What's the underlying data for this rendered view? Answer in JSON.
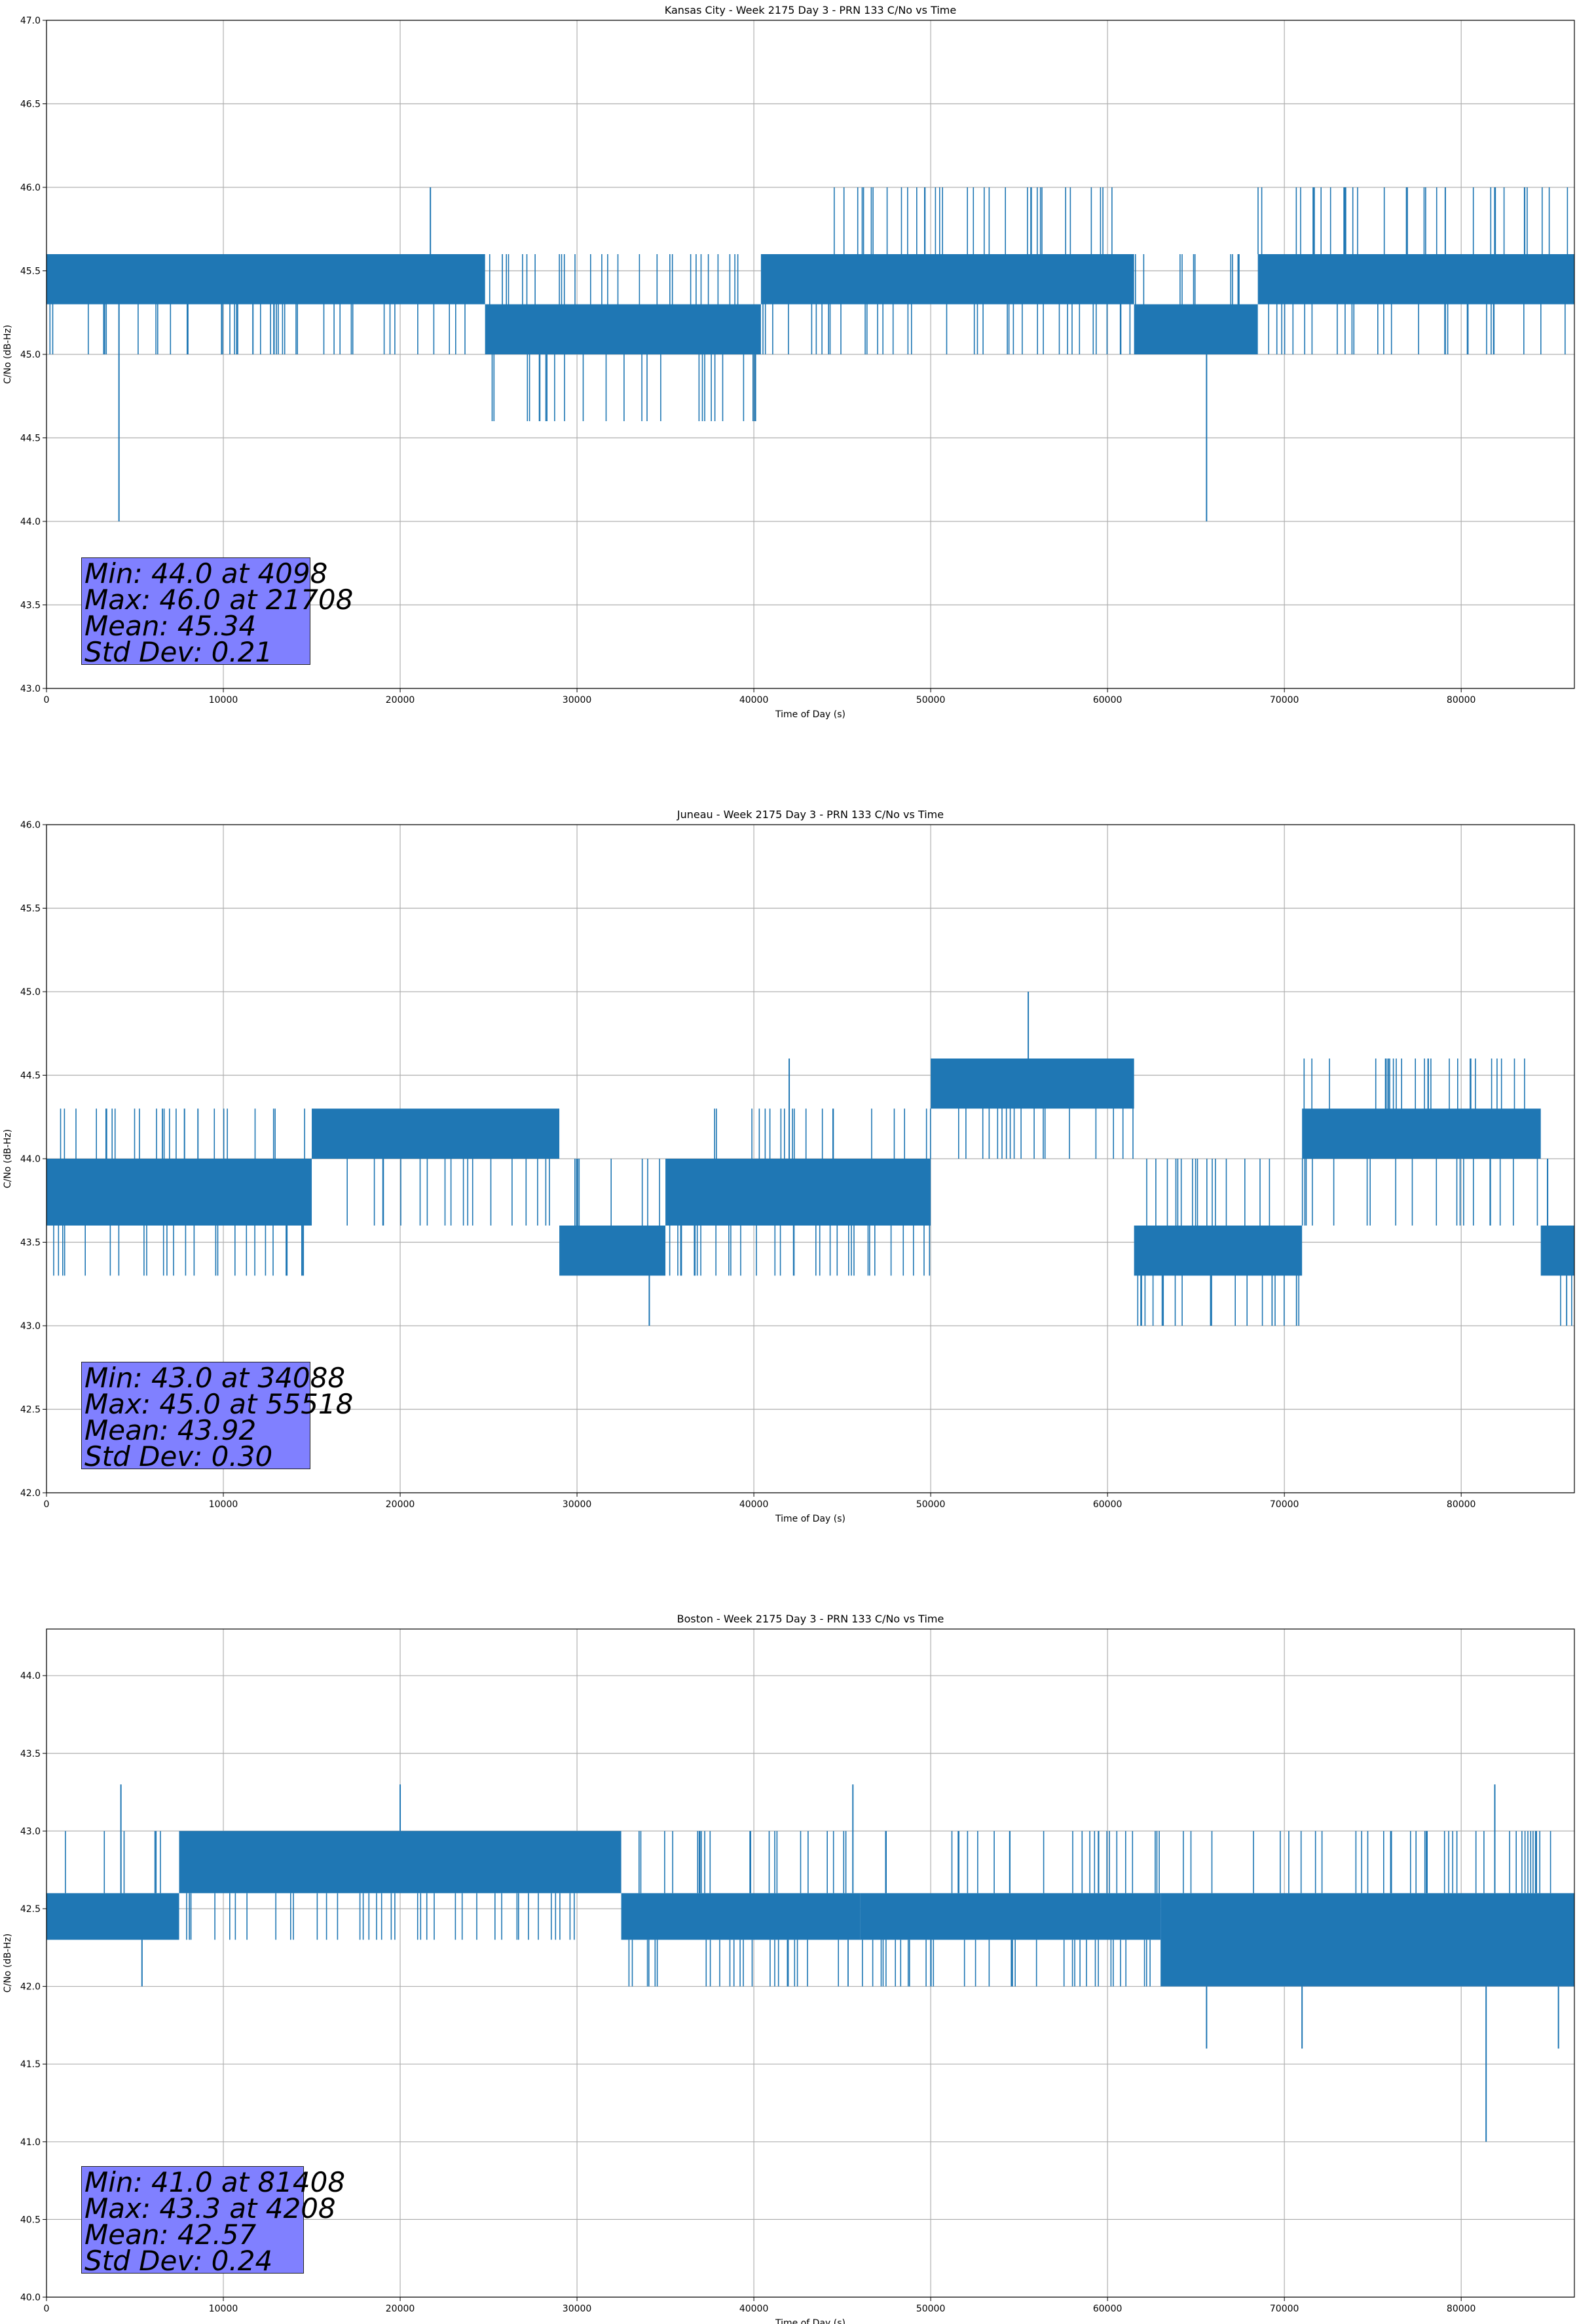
{
  "colors": {
    "series": "#1f77b4",
    "grid": "#b0b0b0",
    "stats_box": "#8080ff"
  },
  "chart_data": [
    {
      "type": "line",
      "title": "Kansas City - Week 2175 Day 3 - PRN 133 C/No vs Time",
      "xlabel": "Time of Day (s)",
      "ylabel": "C/No (dB-Hz)",
      "xlim": [
        0,
        86400
      ],
      "ylim": [
        43.0,
        47.0
      ],
      "xticks": [
        "0",
        "10000",
        "20000",
        "30000",
        "40000",
        "50000",
        "60000",
        "70000",
        "80000"
      ],
      "yticks": [
        "43.0",
        "43.5",
        "44.0",
        "44.5",
        "45.0",
        "45.5",
        "46.0",
        "46.5",
        "47.0"
      ],
      "grid": true,
      "series": [
        {
          "segments": [
            {
              "x": [
                0,
                24800
              ],
              "low": 45.3,
              "high": 45.6,
              "dips": [
                45.0
              ],
              "spikes": []
            },
            {
              "x": [
                24800,
                40400
              ],
              "low": 45.0,
              "high": 45.3,
              "dips": [
                44.6
              ],
              "spikes": [
                45.6
              ]
            },
            {
              "x": [
                40400,
                61500
              ],
              "low": 45.3,
              "high": 45.6,
              "dips": [
                45.0
              ],
              "spikes": [
                46.0
              ]
            },
            {
              "x": [
                61500,
                68500
              ],
              "low": 45.0,
              "high": 45.3,
              "dips": [],
              "spikes": [
                45.6
              ]
            },
            {
              "x": [
                68500,
                86400
              ],
              "low": 45.3,
              "high": 45.6,
              "dips": [
                45.0
              ],
              "spikes": [
                46.0
              ]
            }
          ],
          "outliers": [
            [
              4098,
              44.0
            ],
            [
              21708,
              46.0
            ],
            [
              65600,
              44.0
            ]
          ]
        }
      ],
      "stats": [
        "Min: 44.0 at 4098",
        "Max: 46.0 at 21708",
        "Mean: 45.34",
        "Std Dev: 0.21"
      ]
    },
    {
      "type": "line",
      "title": "Juneau - Week 2175 Day 3 - PRN 133 C/No vs Time",
      "xlabel": "Time of Day (s)",
      "ylabel": "C/No (dB-Hz)",
      "xlim": [
        0,
        86400
      ],
      "ylim": [
        42.0,
        46.0
      ],
      "xticks": [
        "0",
        "10000",
        "20000",
        "30000",
        "40000",
        "50000",
        "60000",
        "70000",
        "80000"
      ],
      "yticks": [
        "42.0",
        "42.5",
        "43.0",
        "43.5",
        "44.0",
        "44.5",
        "45.0",
        "45.5",
        "46.0"
      ],
      "grid": true,
      "series": [
        {
          "segments": [
            {
              "x": [
                0,
                15000
              ],
              "low": 43.6,
              "high": 44.0,
              "dips": [
                43.3
              ],
              "spikes": [
                44.3
              ]
            },
            {
              "x": [
                15000,
                29000
              ],
              "low": 44.0,
              "high": 44.3,
              "dips": [
                43.6
              ],
              "spikes": []
            },
            {
              "x": [
                29000,
                35000
              ],
              "low": 43.3,
              "high": 43.6,
              "dips": [],
              "spikes": [
                44.0
              ]
            },
            {
              "x": [
                35000,
                50000
              ],
              "low": 43.6,
              "high": 44.0,
              "dips": [
                43.3
              ],
              "spikes": [
                44.3
              ]
            },
            {
              "x": [
                50000,
                61500
              ],
              "low": 44.3,
              "high": 44.6,
              "dips": [
                44.0
              ],
              "spikes": []
            },
            {
              "x": [
                61500,
                71000
              ],
              "low": 43.3,
              "high": 43.6,
              "dips": [
                43.0
              ],
              "spikes": [
                44.0
              ]
            },
            {
              "x": [
                71000,
                84500
              ],
              "low": 44.0,
              "high": 44.3,
              "dips": [
                43.6
              ],
              "spikes": [
                44.6
              ]
            },
            {
              "x": [
                84500,
                86400
              ],
              "low": 43.3,
              "high": 43.6,
              "dips": [
                43.0
              ],
              "spikes": [
                44.0
              ]
            }
          ],
          "outliers": [
            [
              34088,
              43.0
            ],
            [
              55518,
              45.0
            ],
            [
              42000,
              44.6
            ]
          ]
        }
      ],
      "stats": [
        "Min: 43.0 at 34088",
        "Max: 45.0 at 55518",
        "Mean: 43.92",
        "Std Dev: 0.30"
      ]
    },
    {
      "type": "line",
      "title": "Boston - Week 2175 Day 3 - PRN 133 C/No vs Time",
      "xlabel": "Time of Day (s)",
      "ylabel": "C/No (dB-Hz)",
      "xlim": [
        0,
        86400
      ],
      "ylim": [
        40.0,
        44.3
      ],
      "xticks": [
        "0",
        "10000",
        "20000",
        "30000",
        "40000",
        "50000",
        "60000",
        "70000",
        "80000"
      ],
      "yticks": [
        "40.0",
        "40.5",
        "41.0",
        "41.5",
        "42.0",
        "42.5",
        "43.0",
        "43.5",
        "44.0"
      ],
      "grid": true,
      "series": [
        {
          "segments": [
            {
              "x": [
                0,
                7500
              ],
              "low": 42.3,
              "high": 42.6,
              "dips": [],
              "spikes": [
                43.0
              ]
            },
            {
              "x": [
                7500,
                32500
              ],
              "low": 42.6,
              "high": 43.0,
              "dips": [
                42.3
              ],
              "spikes": []
            },
            {
              "x": [
                32500,
                46000
              ],
              "low": 42.3,
              "high": 42.6,
              "dips": [
                42.0
              ],
              "spikes": [
                43.0
              ]
            },
            {
              "x": [
                46000,
                63000
              ],
              "low": 42.3,
              "high": 42.6,
              "dips": [
                42.0
              ],
              "spikes": [
                43.0
              ]
            },
            {
              "x": [
                63000,
                86400
              ],
              "low": 42.0,
              "high": 42.6,
              "dips": [],
              "spikes": [
                43.0
              ]
            }
          ],
          "outliers": [
            [
              81408,
              41.0
            ],
            [
              4208,
              43.3
            ],
            [
              20000,
              43.3
            ],
            [
              45600,
              43.3
            ],
            [
              65600,
              41.6
            ],
            [
              71000,
              41.6
            ],
            [
              81900,
              43.3
            ],
            [
              85500,
              41.6
            ],
            [
              5400,
              42.0
            ]
          ]
        }
      ],
      "stats": [
        "Min: 41.0 at 81408",
        "Max: 43.3 at 4208",
        "Mean: 42.57",
        "Std Dev: 0.24"
      ]
    }
  ]
}
